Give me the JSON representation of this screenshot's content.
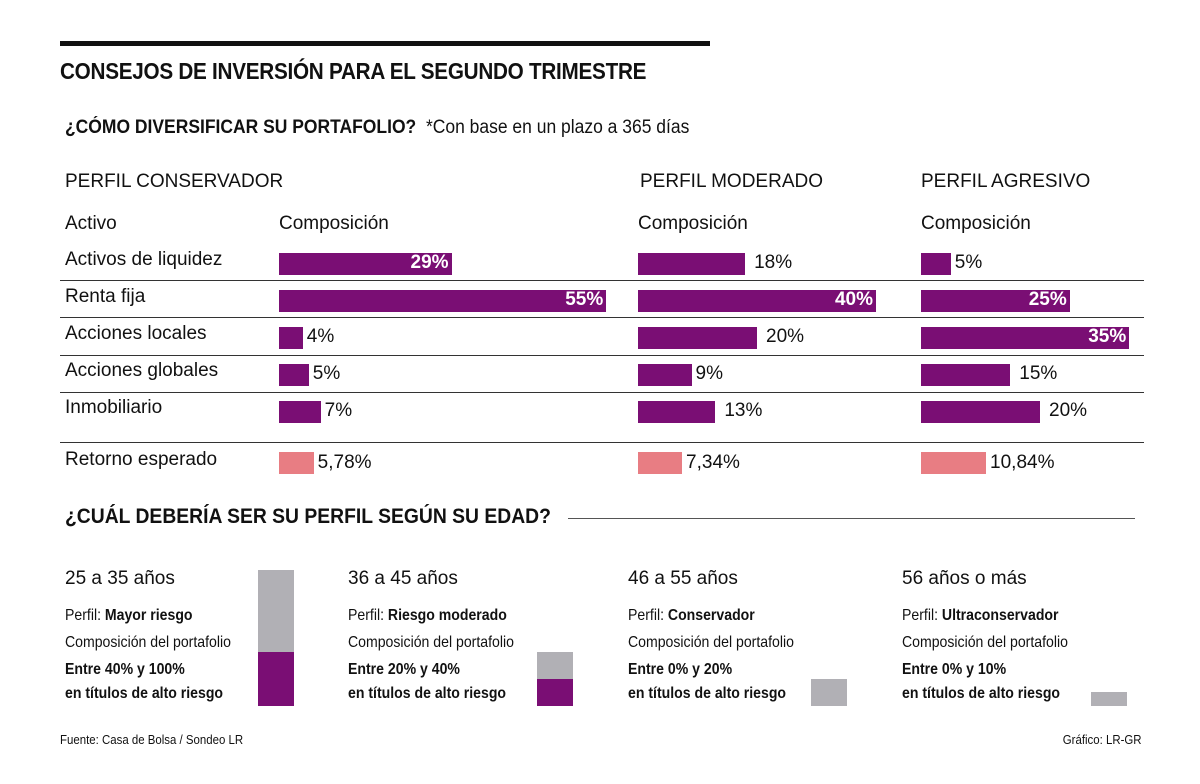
{
  "title": "CONSEJOS DE INVERSIÓN PARA EL SEGUNDO TRIMESTRE",
  "subtitle": {
    "bold": "¿CÓMO DIVERSIFICAR SU PORTAFOLIO?",
    "note": "*Con base en un plazo a 365 días"
  },
  "asset_header": "Activo",
  "composition_header": "Composición",
  "section2_title": "¿CUÁL DEBERÍA SER SU PERFIL SEGÚN SU EDAD?",
  "footer": {
    "source": "Fuente: Casa de Bolsa / Sondeo LR",
    "credit": "Gráfico: LR-GR"
  },
  "colors": {
    "composition": "#7a0e74",
    "return": "#e87d83",
    "low_risk": "#b1b0b5"
  },
  "chart_data": [
    {
      "type": "bar",
      "orientation": "horizontal",
      "title": "¿CÓMO DIVERSIFICAR SU PORTAFOLIO?",
      "categories": [
        "Activos de liquidez",
        "Renta fija",
        "Acciones locales",
        "Acciones globales",
        "Inmobiliario"
      ],
      "series": [
        {
          "name": "PERFIL CONSERVADOR",
          "values": [
            29,
            55,
            4,
            5,
            7
          ],
          "labels": [
            "29%",
            "55%",
            "4%",
            "5%",
            "7%"
          ],
          "return_label": "Retorno esperado",
          "return": 5.78,
          "return_text": "5,78%"
        },
        {
          "name": "PERFIL MODERADO",
          "values": [
            18,
            40,
            20,
            9,
            13
          ],
          "labels": [
            "18%",
            "40%",
            "20%",
            "9%",
            "13%"
          ],
          "return_label": "Retorno esperado",
          "return": 7.34,
          "return_text": "7,34%"
        },
        {
          "name": "PERFIL AGRESIVO",
          "values": [
            5,
            25,
            35,
            15,
            20
          ],
          "labels": [
            "5%",
            "25%",
            "35%",
            "15%",
            "20%"
          ],
          "return_label": "Retorno esperado",
          "return": 10.84,
          "return_text": "10,84%"
        }
      ],
      "unit": "%"
    },
    {
      "type": "bar",
      "orientation": "vertical-stacked",
      "title": "¿CUÁL DEBERÍA SER SU PERFIL SEGÚN SU EDAD?",
      "categories": [
        "25 a 35 años",
        "36 a 45 años",
        "46 a 55 años",
        "56 años o más"
      ],
      "profiles": [
        {
          "age": "25 a 35 años",
          "profile_prefix": "Perfil: ",
          "profile": "Mayor riesgo",
          "comp": "Composición del portafolio",
          "range_line1": "Entre 40% y 100%",
          "range_line2": "en títulos de alto riesgo",
          "min": 40,
          "max": 100
        },
        {
          "age": "36 a 45 años",
          "profile_prefix": "Perfil: ",
          "profile": "Riesgo moderado",
          "comp": "Composición del portafolio",
          "range_line1": "Entre 20% y 40%",
          "range_line2": "en títulos de alto riesgo",
          "min": 20,
          "max": 40
        },
        {
          "age": "46 a 55 años",
          "profile_prefix": "Perfil: ",
          "profile": "Conservador",
          "comp": "Composición del portafolio",
          "range_line1": "Entre 0% y 20%",
          "range_line2": "en títulos de alto riesgo",
          "min": 0,
          "max": 20
        },
        {
          "age": "56 años o más",
          "profile_prefix": "Perfil: ",
          "profile": "Ultraconservador",
          "comp": "Composición del portafolio",
          "range_line1": "Entre 0% y 10%",
          "range_line2": "en títulos de alto riesgo",
          "min": 0,
          "max": 10
        }
      ]
    }
  ]
}
